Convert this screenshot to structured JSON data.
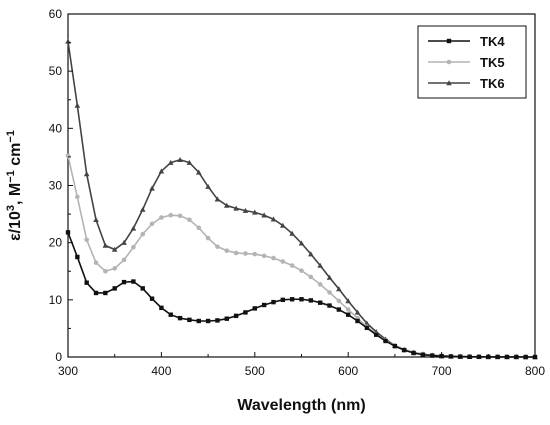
{
  "chart_data": {
    "type": "line",
    "title": "",
    "xlabel": "Wavelength (nm)",
    "ylabel_parts": [
      "ε/10",
      "3",
      ", M",
      "−1",
      " cm",
      "−1"
    ],
    "xlim": [
      300,
      800
    ],
    "ylim": [
      0,
      60
    ],
    "xticks": [
      300,
      400,
      500,
      600,
      700,
      800
    ],
    "yticks": [
      0,
      10,
      20,
      30,
      40,
      50,
      60
    ],
    "grid": false,
    "legend_position": "top-right",
    "x": [
      300,
      310,
      320,
      330,
      340,
      350,
      360,
      370,
      380,
      390,
      400,
      410,
      420,
      430,
      440,
      450,
      460,
      470,
      480,
      490,
      500,
      510,
      520,
      530,
      540,
      550,
      560,
      570,
      580,
      590,
      600,
      610,
      620,
      630,
      640,
      650,
      660,
      670,
      680,
      690,
      700,
      710,
      720,
      730,
      740,
      750,
      760,
      770,
      780,
      790,
      800
    ],
    "series": [
      {
        "name": "TK4",
        "color": "#111111",
        "marker": "square",
        "values": [
          21.8,
          17.5,
          13.0,
          11.2,
          11.2,
          12.0,
          13.1,
          13.2,
          12.0,
          10.2,
          8.6,
          7.4,
          6.8,
          6.5,
          6.3,
          6.3,
          6.4,
          6.7,
          7.2,
          7.8,
          8.5,
          9.1,
          9.6,
          10.0,
          10.1,
          10.1,
          9.9,
          9.5,
          9.0,
          8.3,
          7.4,
          6.3,
          5.1,
          3.9,
          2.8,
          1.9,
          1.2,
          0.7,
          0.4,
          0.25,
          0.15,
          0.1,
          0.06,
          0.04,
          0.03,
          0.02,
          0.02,
          0.01,
          0.01,
          0.0,
          0.0
        ]
      },
      {
        "name": "TK5",
        "color": "#b4b4b4",
        "marker": "circle",
        "values": [
          35.2,
          28.0,
          20.5,
          16.5,
          15.0,
          15.5,
          17.0,
          19.2,
          21.5,
          23.3,
          24.4,
          24.8,
          24.7,
          24.0,
          22.6,
          20.8,
          19.3,
          18.6,
          18.2,
          18.1,
          18.0,
          17.7,
          17.3,
          16.7,
          16.0,
          15.1,
          14.0,
          12.7,
          11.3,
          9.8,
          8.3,
          6.8,
          5.3,
          4.0,
          2.9,
          2.0,
          1.3,
          0.8,
          0.5,
          0.3,
          0.18,
          0.1,
          0.06,
          0.04,
          0.03,
          0.02,
          0.02,
          0.01,
          0.01,
          0.0,
          0.0
        ]
      },
      {
        "name": "TK6",
        "color": "#444444",
        "marker": "triangle",
        "values": [
          55.2,
          44.0,
          32.0,
          24.0,
          19.5,
          18.8,
          20.0,
          22.5,
          25.8,
          29.5,
          32.5,
          34.0,
          34.5,
          34.0,
          32.3,
          29.8,
          27.6,
          26.5,
          26.0,
          25.6,
          25.3,
          24.8,
          24.1,
          23.0,
          21.6,
          19.9,
          18.0,
          16.0,
          13.9,
          11.9,
          9.8,
          7.8,
          5.9,
          4.4,
          3.1,
          2.0,
          1.3,
          0.8,
          0.5,
          0.3,
          0.2,
          0.12,
          0.08,
          0.05,
          0.04,
          0.03,
          0.02,
          0.02,
          0.01,
          0.0,
          0.0
        ]
      }
    ]
  }
}
